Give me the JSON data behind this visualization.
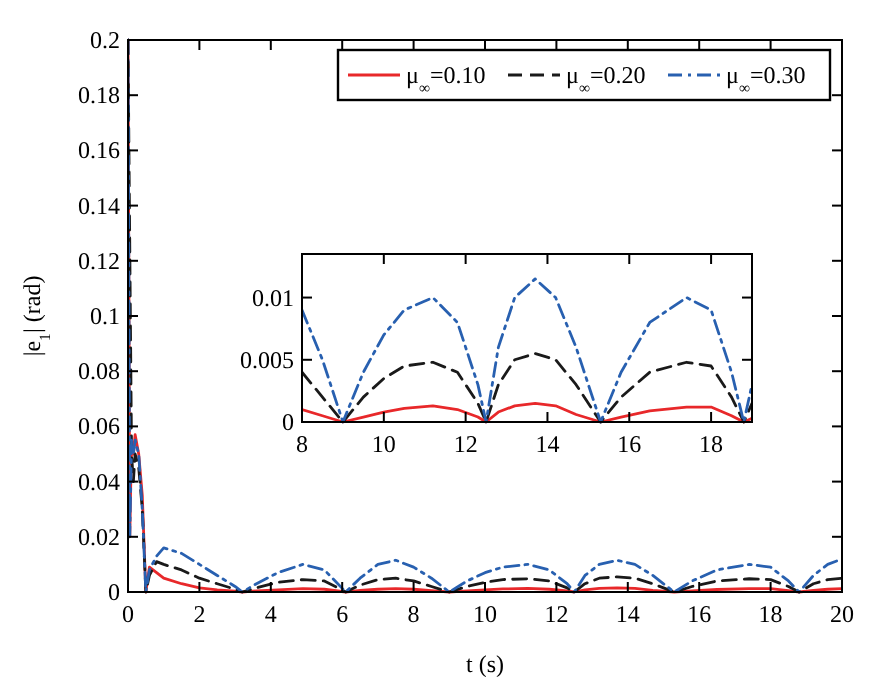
{
  "chart_data": [
    {
      "type": "line",
      "xlabel": "t (s)",
      "ylabel": "|e$_{1}$| (rad)",
      "xlim": [
        0,
        20
      ],
      "ylim": [
        0,
        0.2
      ],
      "xticks": [
        0,
        2,
        4,
        6,
        8,
        10,
        12,
        14,
        16,
        18,
        20
      ],
      "yticks": [
        0,
        0.02,
        0.04,
        0.06,
        0.08,
        0.1,
        0.12,
        0.14,
        0.16,
        0.18,
        0.2
      ],
      "grid": false,
      "legend": "top right",
      "x": [
        0,
        0.05,
        0.1,
        0.15,
        0.2,
        0.3,
        0.4,
        0.5,
        0.6,
        0.8,
        1.0,
        1.5,
        2,
        2.5,
        3,
        3.2,
        3.6,
        4.2,
        4.9,
        5.5,
        6.1,
        6.5,
        7,
        7.5,
        8,
        8.5,
        9,
        9.5,
        10,
        10.5,
        11.2,
        11.8,
        12.3,
        12.5,
        12.8,
        13.2,
        13.7,
        14.2,
        14.7,
        15.3,
        15.8,
        16.5,
        17.4,
        18,
        18.5,
        18.8,
        19.2,
        19.6,
        20
      ],
      "series": [
        {
          "name": "μ$_{∞}$=0.10",
          "color": "#e8282a",
          "line_style": "solid",
          "values": [
            0.2,
            0.02,
            0.055,
            0.05,
            0.057,
            0.05,
            0.035,
            0,
            0.009,
            0.007,
            0.005,
            0.003,
            0.0015,
            0.0008,
            0.0003,
            0,
            0.0004,
            0.0008,
            0.0012,
            0.001,
            0,
            0.0006,
            0.001,
            0.0012,
            0.001,
            0.0005,
            0,
            0.0004,
            0.0008,
            0.0011,
            0.0013,
            0.001,
            0.0004,
            0,
            0.0008,
            0.0013,
            0.0015,
            0.0013,
            0.0006,
            0,
            0.0004,
            0.0009,
            0.0012,
            0.0012,
            0.0005,
            0,
            0.0006,
            0.001,
            0.0012
          ]
        },
        {
          "name": "μ$_{∞}$=0.20",
          "color": "#1a1a1a",
          "line_style": "dashed",
          "x": [
            0,
            0.1,
            0.15,
            0.2,
            0.3,
            0.4,
            0.5,
            0.6,
            0.8,
            1.0,
            1.5,
            2,
            2.5,
            3,
            3.2,
            3.6,
            4.2,
            4.9,
            5.5,
            6.1,
            6.5,
            7,
            7.5,
            8,
            8.5,
            9,
            9.5,
            10,
            10.5,
            11.2,
            11.8,
            12.3,
            12.5,
            12.8,
            13.2,
            13.7,
            14.2,
            14.7,
            15.3,
            15.8,
            16.5,
            17.4,
            18,
            18.5,
            18.8,
            19.2,
            19.6,
            20
          ],
          "values": [
            0.2,
            0.05,
            0.04,
            0.05,
            0.045,
            0.03,
            0,
            0.006,
            0.011,
            0.01,
            0.008,
            0.005,
            0.003,
            0.001,
            0,
            0.0015,
            0.0035,
            0.0045,
            0.004,
            0,
            0.0025,
            0.0045,
            0.005,
            0.004,
            0.002,
            0,
            0.002,
            0.0035,
            0.0045,
            0.0048,
            0.004,
            0.0015,
            0,
            0.003,
            0.005,
            0.0055,
            0.005,
            0.003,
            0,
            0.002,
            0.004,
            0.0048,
            0.0045,
            0.002,
            0,
            0.003,
            0.0045,
            0.005
          ]
        },
        {
          "name": "μ$_{∞}$=0.30",
          "color": "#2860b0",
          "line_style": "dashdot",
          "values": [
            0.2,
            0.02,
            0.055,
            0.05,
            0.055,
            0.05,
            0.03,
            0,
            0.008,
            0.013,
            0.016,
            0.014,
            0.01,
            0.006,
            0.002,
            0,
            0.003,
            0.007,
            0.01,
            0.008,
            0,
            0.005,
            0.01,
            0.0115,
            0.009,
            0.005,
            0,
            0.004,
            0.007,
            0.009,
            0.01,
            0.008,
            0.003,
            0,
            0.006,
            0.01,
            0.0115,
            0.01,
            0.006,
            0,
            0.004,
            0.008,
            0.01,
            0.009,
            0.004,
            0,
            0.006,
            0.01,
            0.012
          ]
        }
      ]
    },
    {
      "type": "line",
      "xlim": [
        8,
        19
      ],
      "ylim": [
        0,
        0.0135
      ],
      "xticks": [
        8,
        10,
        12,
        14,
        16,
        18
      ],
      "yticks": [
        0,
        0.005,
        0.01
      ],
      "grid": false,
      "x": [
        8,
        8.5,
        9,
        9.5,
        10,
        10.5,
        11.2,
        11.8,
        12.3,
        12.5,
        12.8,
        13.2,
        13.7,
        14.2,
        14.7,
        15.3,
        15.8,
        16.5,
        17.4,
        18,
        18.5,
        18.8,
        19
      ],
      "series": [
        {
          "color": "#e8282a",
          "line_style": "solid",
          "values": [
            0.001,
            0.0005,
            0,
            0.0004,
            0.0008,
            0.0011,
            0.0013,
            0.001,
            0.0004,
            0,
            0.0008,
            0.0013,
            0.0015,
            0.0013,
            0.0006,
            0,
            0.0004,
            0.0009,
            0.0012,
            0.0012,
            0.0005,
            0,
            0.0003
          ]
        },
        {
          "color": "#1a1a1a",
          "line_style": "dashed",
          "values": [
            0.004,
            0.002,
            0,
            0.002,
            0.0035,
            0.0045,
            0.0048,
            0.004,
            0.0015,
            0,
            0.003,
            0.005,
            0.0055,
            0.005,
            0.003,
            0,
            0.002,
            0.004,
            0.0048,
            0.0045,
            0.002,
            0,
            0.0015
          ]
        },
        {
          "color": "#2860b0",
          "line_style": "dashdot",
          "values": [
            0.009,
            0.005,
            0,
            0.004,
            0.007,
            0.009,
            0.01,
            0.008,
            0.003,
            0,
            0.006,
            0.01,
            0.0115,
            0.01,
            0.006,
            0,
            0.004,
            0.008,
            0.01,
            0.009,
            0.004,
            0,
            0.003
          ]
        }
      ]
    }
  ]
}
